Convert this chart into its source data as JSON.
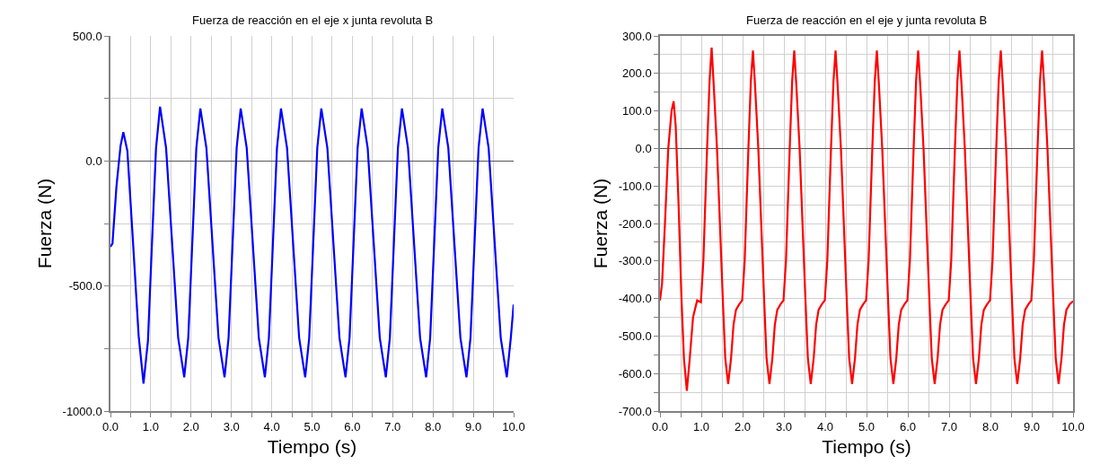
{
  "chart_data": [
    {
      "type": "line",
      "title": "Fuerza de reacción en el eje x junta revoluta B",
      "xlabel": "Tiempo (s)",
      "ylabel": "Fuerza (N)",
      "grid": true,
      "line_style": "solid",
      "xlim": [
        0,
        10
      ],
      "ylim": [
        -1000,
        500
      ],
      "xticks": [
        {
          "value": 0,
          "label": "0.0"
        },
        {
          "value": 0.5,
          "label": null
        },
        {
          "value": 1,
          "label": "1.0"
        },
        {
          "value": 1.5,
          "label": null
        },
        {
          "value": 2,
          "label": "2.0"
        },
        {
          "value": 2.5,
          "label": null
        },
        {
          "value": 3,
          "label": "3.0"
        },
        {
          "value": 3.5,
          "label": null
        },
        {
          "value": 4,
          "label": "4.0"
        },
        {
          "value": 4.5,
          "label": null
        },
        {
          "value": 5,
          "label": "5.0"
        },
        {
          "value": 5.5,
          "label": null
        },
        {
          "value": 6,
          "label": "6.0"
        },
        {
          "value": 6.5,
          "label": null
        },
        {
          "value": 7,
          "label": "7.0"
        },
        {
          "value": 7.5,
          "label": null
        },
        {
          "value": 8,
          "label": "8.0"
        },
        {
          "value": 8.5,
          "label": null
        },
        {
          "value": 9,
          "label": "9.0"
        },
        {
          "value": 9.5,
          "label": null
        },
        {
          "value": 10,
          "label": "10.0"
        }
      ],
      "yticks": [
        {
          "value": 500,
          "label": "500.0"
        },
        {
          "value": 250,
          "label": null
        },
        {
          "value": 0,
          "label": "0.0"
        },
        {
          "value": -250,
          "label": null
        },
        {
          "value": -500,
          "label": "-500.0"
        },
        {
          "value": -750,
          "label": null
        },
        {
          "value": -1000,
          "label": "-1000.0"
        }
      ],
      "series": [
        {
          "color": "#0000ff",
          "x": [
            0,
            0.05,
            0.15,
            0.25,
            0.32,
            0.42,
            0.55,
            0.7,
            0.82,
            0.93,
            1.03,
            1.13,
            1.23,
            1.38,
            1.53,
            1.68,
            1.83,
            1.93,
            2.03,
            2.13,
            2.23,
            2.38,
            2.53,
            2.68,
            2.83,
            2.93,
            3.03,
            3.13,
            3.23,
            3.38,
            3.53,
            3.68,
            3.83,
            3.93,
            4.03,
            4.13,
            4.23,
            4.38,
            4.53,
            4.68,
            4.83,
            4.93,
            5.03,
            5.13,
            5.23,
            5.38,
            5.53,
            5.68,
            5.83,
            5.93,
            6.03,
            6.13,
            6.23,
            6.38,
            6.53,
            6.68,
            6.83,
            6.93,
            7.03,
            7.13,
            7.23,
            7.38,
            7.53,
            7.68,
            7.83,
            7.93,
            8.03,
            8.13,
            8.23,
            8.38,
            8.53,
            8.68,
            8.83,
            8.93,
            9.03,
            9.13,
            9.23,
            9.38,
            9.53,
            9.68,
            9.83,
            9.93,
            10.0
          ],
          "values": [
            -343,
            -330,
            -100,
            60,
            115,
            40,
            -300,
            -700,
            -890,
            -720,
            -330,
            50,
            217,
            52,
            -328,
            -707,
            -865,
            -707,
            -328,
            52,
            210,
            52,
            -328,
            -707,
            -865,
            -707,
            -328,
            52,
            210,
            52,
            -328,
            -707,
            -865,
            -707,
            -328,
            52,
            210,
            52,
            -328,
            -707,
            -865,
            -707,
            -328,
            52,
            210,
            52,
            -328,
            -707,
            -865,
            -707,
            -328,
            52,
            210,
            52,
            -328,
            -707,
            -865,
            -707,
            -328,
            52,
            210,
            52,
            -328,
            -707,
            -865,
            -707,
            -328,
            52,
            210,
            52,
            -328,
            -707,
            -865,
            -707,
            -328,
            52,
            210,
            52,
            -328,
            -707,
            -865,
            -707,
            -574
          ]
        }
      ]
    },
    {
      "type": "line",
      "title": "Fuerza de reacción en el eje y junta revoluta B",
      "xlabel": "Tiempo (s)",
      "ylabel": "Fuerza (N)",
      "grid": true,
      "line_style": "solid",
      "xlim": [
        0,
        10
      ],
      "ylim": [
        -700,
        300
      ],
      "xticks": [
        {
          "value": 0,
          "label": "0.0"
        },
        {
          "value": 0.5,
          "label": null
        },
        {
          "value": 1,
          "label": "1.0"
        },
        {
          "value": 1.5,
          "label": null
        },
        {
          "value": 2,
          "label": "2.0"
        },
        {
          "value": 2.5,
          "label": null
        },
        {
          "value": 3,
          "label": "3.0"
        },
        {
          "value": 3.5,
          "label": null
        },
        {
          "value": 4,
          "label": "4.0"
        },
        {
          "value": 4.5,
          "label": null
        },
        {
          "value": 5,
          "label": "5.0"
        },
        {
          "value": 5.5,
          "label": null
        },
        {
          "value": 6,
          "label": "6.0"
        },
        {
          "value": 6.5,
          "label": null
        },
        {
          "value": 7,
          "label": "7.0"
        },
        {
          "value": 7.5,
          "label": null
        },
        {
          "value": 8,
          "label": "8.0"
        },
        {
          "value": 8.5,
          "label": null
        },
        {
          "value": 9,
          "label": "9.0"
        },
        {
          "value": 9.5,
          "label": null
        },
        {
          "value": 10,
          "label": "10.0"
        }
      ],
      "yticks": [
        {
          "value": 300,
          "label": "300.0"
        },
        {
          "value": 250,
          "label": null
        },
        {
          "value": 200,
          "label": "200.0"
        },
        {
          "value": 150,
          "label": null
        },
        {
          "value": 100,
          "label": "100.0"
        },
        {
          "value": 50,
          "label": null
        },
        {
          "value": 0,
          "label": "0.0"
        },
        {
          "value": -50,
          "label": null
        },
        {
          "value": -100,
          "label": "-100.0"
        },
        {
          "value": -150,
          "label": null
        },
        {
          "value": -200,
          "label": "-200.0"
        },
        {
          "value": -250,
          "label": null
        },
        {
          "value": -300,
          "label": "-300.0"
        },
        {
          "value": -350,
          "label": null
        },
        {
          "value": -400,
          "label": "-400.0"
        },
        {
          "value": -450,
          "label": null
        },
        {
          "value": -500,
          "label": "-500.0"
        },
        {
          "value": -550,
          "label": null
        },
        {
          "value": -600,
          "label": "-600.0"
        },
        {
          "value": -650,
          "label": null
        },
        {
          "value": -700,
          "label": "-700.0"
        }
      ],
      "series": [
        {
          "color": "#ff0000",
          "x": [
            0,
            0.05,
            0.12,
            0.2,
            0.28,
            0.33,
            0.38,
            0.45,
            0.52,
            0.58,
            0.65,
            0.72,
            0.8,
            0.9,
            0.99,
            1.05,
            1.14,
            1.2,
            1.25,
            1.3,
            1.38,
            1.45,
            1.52,
            1.58,
            1.65,
            1.72,
            1.78,
            1.84,
            1.92,
            1.99,
            2.05,
            2.14,
            2.2,
            2.25,
            2.3,
            2.38,
            2.45,
            2.52,
            2.58,
            2.65,
            2.72,
            2.78,
            2.84,
            2.92,
            2.99,
            3.05,
            3.14,
            3.2,
            3.25,
            3.3,
            3.38,
            3.45,
            3.52,
            3.58,
            3.65,
            3.72,
            3.78,
            3.84,
            3.92,
            3.99,
            4.05,
            4.14,
            4.2,
            4.25,
            4.3,
            4.38,
            4.45,
            4.52,
            4.58,
            4.65,
            4.72,
            4.78,
            4.84,
            4.92,
            4.99,
            5.05,
            5.14,
            5.2,
            5.25,
            5.3,
            5.38,
            5.45,
            5.52,
            5.58,
            5.65,
            5.72,
            5.78,
            5.84,
            5.92,
            5.99,
            6.05,
            6.14,
            6.2,
            6.25,
            6.3,
            6.38,
            6.45,
            6.52,
            6.58,
            6.65,
            6.72,
            6.78,
            6.84,
            6.92,
            6.99,
            7.05,
            7.14,
            7.2,
            7.25,
            7.3,
            7.38,
            7.45,
            7.52,
            7.58,
            7.65,
            7.72,
            7.78,
            7.84,
            7.92,
            7.99,
            8.05,
            8.14,
            8.2,
            8.25,
            8.3,
            8.38,
            8.45,
            8.52,
            8.58,
            8.65,
            8.72,
            8.78,
            8.84,
            8.92,
            8.99,
            9.05,
            9.14,
            9.2,
            9.25,
            9.3,
            9.38,
            9.45,
            9.52,
            9.58,
            9.65,
            9.72,
            9.78,
            9.84,
            9.92,
            10.0
          ],
          "values": [
            -405,
            -360,
            -200,
            0,
            100,
            126,
            60,
            -150,
            -400,
            -560,
            -646,
            -560,
            -450,
            -405,
            -410,
            -300,
            0,
            180,
            269,
            170,
            0,
            -200,
            -400,
            -560,
            -628,
            -560,
            -470,
            -430,
            -415,
            -405,
            -300,
            0,
            180,
            261,
            170,
            0,
            -200,
            -400,
            -560,
            -628,
            -560,
            -470,
            -430,
            -415,
            -405,
            -300,
            0,
            180,
            261,
            170,
            0,
            -200,
            -400,
            -560,
            -628,
            -560,
            -470,
            -430,
            -415,
            -405,
            -300,
            0,
            180,
            261,
            170,
            0,
            -200,
            -400,
            -560,
            -628,
            -560,
            -470,
            -430,
            -415,
            -405,
            -300,
            0,
            180,
            261,
            170,
            0,
            -200,
            -400,
            -560,
            -628,
            -560,
            -470,
            -430,
            -415,
            -405,
            -300,
            0,
            180,
            261,
            170,
            0,
            -200,
            -400,
            -560,
            -628,
            -560,
            -470,
            -430,
            -415,
            -405,
            -300,
            0,
            180,
            261,
            170,
            0,
            -200,
            -400,
            -560,
            -628,
            -560,
            -470,
            -430,
            -415,
            -405,
            -300,
            0,
            180,
            261,
            170,
            0,
            -200,
            -400,
            -560,
            -628,
            -560,
            -470,
            -430,
            -415,
            -405,
            -300,
            0,
            180,
            261,
            170,
            0,
            -200,
            -400,
            -560,
            -628,
            -560,
            -470,
            -430,
            -415,
            -407
          ]
        }
      ]
    }
  ]
}
